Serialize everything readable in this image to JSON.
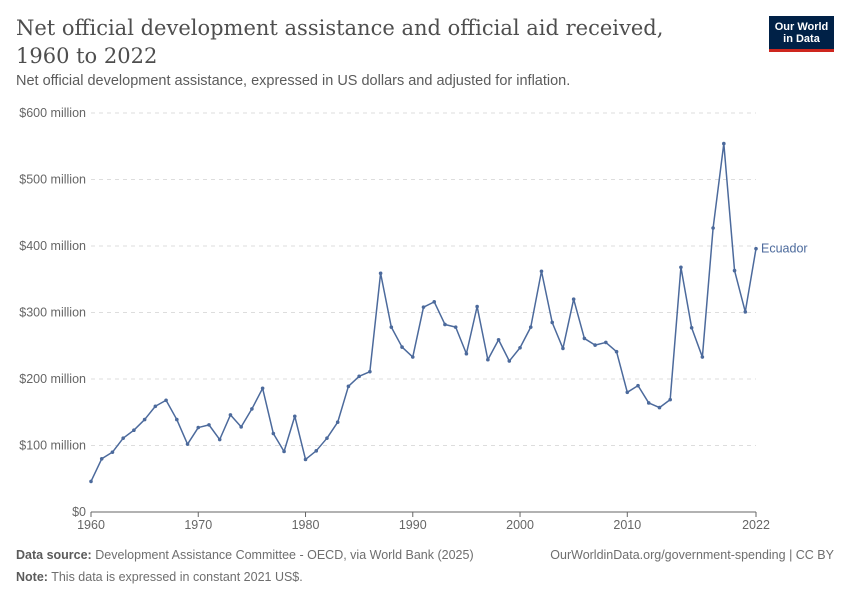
{
  "header": {
    "title": "Net official development assistance and official aid received, 1960 to 2022",
    "subtitle": "Net official development assistance, expressed in US dollars and adjusted for inflation.",
    "logo_line1": "Our World",
    "logo_line2": "in Data"
  },
  "footer": {
    "source_label": "Data source:",
    "source_text": "Development Assistance Committee - OECD, via World Bank (2025)",
    "url_text": "OurWorldinData.org/government-spending | CC BY",
    "note_label": "Note:",
    "note_text": "This data is expressed in constant 2021 US$."
  },
  "colors": {
    "series": "#4c6a9c",
    "grid": "#dddddd",
    "axis": "#666666",
    "text": "#666666"
  },
  "chart_data": {
    "type": "line",
    "title": "Net official development assistance and official aid received, 1960 to 2022",
    "ylim": [
      0,
      600000000
    ],
    "xlim": [
      1960,
      2022
    ],
    "grid": true,
    "y_ticks": [
      {
        "value": 0,
        "label": "$0"
      },
      {
        "value": 100000000,
        "label": "$100 million"
      },
      {
        "value": 200000000,
        "label": "$200 million"
      },
      {
        "value": 300000000,
        "label": "$300 million"
      },
      {
        "value": 400000000,
        "label": "$400 million"
      },
      {
        "value": 500000000,
        "label": "$500 million"
      },
      {
        "value": 600000000,
        "label": "$600 million"
      }
    ],
    "x_ticks": [
      {
        "value": 1960,
        "label": "1960"
      },
      {
        "value": 1970,
        "label": "1970"
      },
      {
        "value": 1980,
        "label": "1980"
      },
      {
        "value": 1990,
        "label": "1990"
      },
      {
        "value": 2000,
        "label": "2000"
      },
      {
        "value": 2010,
        "label": "2010"
      },
      {
        "value": 2022,
        "label": "2022"
      }
    ],
    "series": [
      {
        "name": "Ecuador",
        "x": [
          1960,
          1961,
          1962,
          1963,
          1964,
          1965,
          1966,
          1967,
          1968,
          1969,
          1970,
          1971,
          1972,
          1973,
          1974,
          1975,
          1976,
          1977,
          1978,
          1979,
          1980,
          1981,
          1982,
          1983,
          1984,
          1985,
          1986,
          1987,
          1988,
          1989,
          1990,
          1991,
          1992,
          1993,
          1994,
          1995,
          1996,
          1997,
          1998,
          1999,
          2000,
          2001,
          2002,
          2003,
          2004,
          2005,
          2006,
          2007,
          2008,
          2009,
          2010,
          2011,
          2012,
          2013,
          2014,
          2015,
          2016,
          2017,
          2018,
          2019,
          2020,
          2021,
          2022
        ],
        "values": [
          46000000,
          80000000,
          90000000,
          111000000,
          123000000,
          139000000,
          159000000,
          168000000,
          139000000,
          102000000,
          127000000,
          131000000,
          109000000,
          146000000,
          128000000,
          155000000,
          186000000,
          118000000,
          91000000,
          144000000,
          79000000,
          92000000,
          111000000,
          135000000,
          189000000,
          204000000,
          211000000,
          359000000,
          278000000,
          248000000,
          233000000,
          308000000,
          316000000,
          282000000,
          278000000,
          238000000,
          309000000,
          229000000,
          259000000,
          227000000,
          247000000,
          278000000,
          362000000,
          285000000,
          246000000,
          320000000,
          261000000,
          251000000,
          255000000,
          241000000,
          180000000,
          190000000,
          164000000,
          157000000,
          169000000,
          368000000,
          277000000,
          233000000,
          427000000,
          554000000,
          363000000,
          301000000,
          396000000
        ]
      }
    ]
  }
}
